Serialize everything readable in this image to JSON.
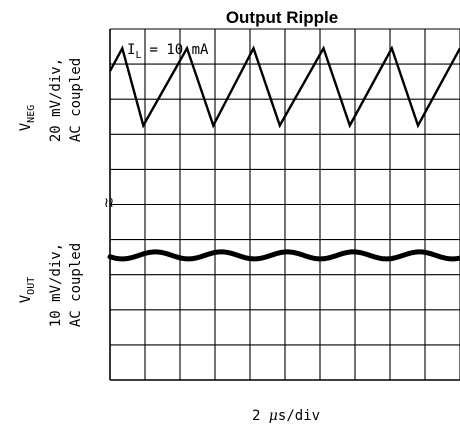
{
  "chart_data": {
    "type": "line",
    "title": "Output Ripple",
    "annotation": {
      "main": "I",
      "sub": "L",
      "text": "=  10 mA"
    },
    "xlabel": {
      "prefix": "2 ",
      "mu": "μ",
      "suffix": "s/div"
    },
    "grid": true,
    "grid_divisions": {
      "x": 10,
      "y": 10
    },
    "break_symbol": "≀≀",
    "colors": {
      "trace": "#000000",
      "grid": "#000000",
      "background": "#ffffff"
    },
    "traces": [
      {
        "name": {
          "main": "V",
          "sub": "NEG"
        },
        "scale": "20 mV/div,",
        "coupling": "AC coupled",
        "shape": "sawtooth",
        "points_div": [
          [
            0.0,
            1.2
          ],
          [
            0.35,
            0.55
          ],
          [
            0.95,
            2.75
          ],
          [
            2.2,
            0.55
          ],
          [
            2.95,
            2.75
          ],
          [
            4.1,
            0.55
          ],
          [
            4.85,
            2.75
          ],
          [
            6.1,
            0.55
          ],
          [
            6.85,
            2.75
          ],
          [
            8.05,
            0.55
          ],
          [
            8.8,
            2.75
          ],
          [
            10.0,
            0.55
          ]
        ]
      },
      {
        "name": {
          "main": "V",
          "sub": "OUT"
        },
        "scale": "10 mV/div,",
        "coupling": "AC coupled",
        "shape": "sine",
        "center_div": 6.45,
        "amplitude_div": 0.1,
        "periods": 5.3
      }
    ]
  }
}
